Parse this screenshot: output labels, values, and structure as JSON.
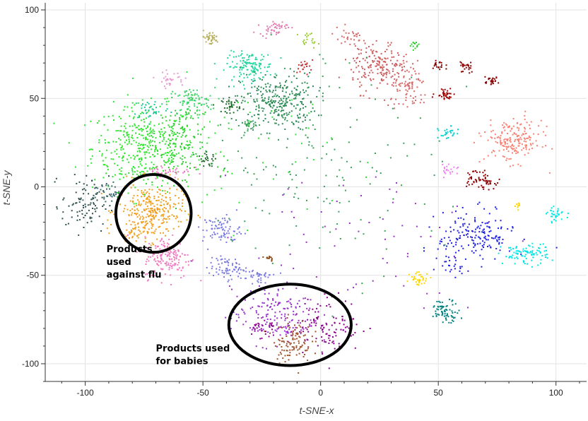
{
  "chart_data": {
    "type": "scatter",
    "xlabel": "t-SNE-x",
    "ylabel": "t-SNE-y",
    "xlim": [
      -117,
      113
    ],
    "ylim": [
      -110,
      104
    ],
    "xticks": [
      -100,
      -50,
      0,
      50,
      100
    ],
    "yticks": [
      -100,
      -50,
      0,
      50,
      100
    ],
    "xtick_labels": [
      "-100",
      "-50",
      "0",
      "50",
      "100"
    ],
    "ytick_labels": [
      "-100",
      "-50",
      "0",
      "50",
      "100"
    ],
    "grid": true,
    "annotations": [
      {
        "lines": [
          "Products",
          "used",
          "against flu"
        ],
        "x": -91,
        "y": -37
      },
      {
        "lines": [
          "Products used",
          "for babies"
        ],
        "x": -70,
        "y": -93
      }
    ],
    "highlight_ellipses": [
      {
        "name": "flu-cluster",
        "cx": -71,
        "cy": -15,
        "rx": 16,
        "ry": 22
      },
      {
        "name": "babies-cluster",
        "cx": -13,
        "cy": -78,
        "rx": 26,
        "ry": 23
      }
    ],
    "clusters": [
      {
        "color": "#2ee62e",
        "cx": -75,
        "cy": 22,
        "sx": 11,
        "sy": 12,
        "n": 420
      },
      {
        "color": "#33cc33",
        "cx": -58,
        "cy": 28,
        "sx": 6,
        "sy": 10,
        "n": 120
      },
      {
        "color": "#3fd36a",
        "cx": -55,
        "cy": 48,
        "sx": 5,
        "sy": 4,
        "n": 80
      },
      {
        "color": "#21c996",
        "cx": -72,
        "cy": 44,
        "sx": 4,
        "sy": 3,
        "n": 40
      },
      {
        "color": "#2e8b57",
        "cx": -18,
        "cy": 48,
        "sx": 8,
        "sy": 8,
        "n": 280
      },
      {
        "color": "#24d6a0",
        "cx": -30,
        "cy": 68,
        "sx": 5,
        "sy": 4,
        "n": 130
      },
      {
        "color": "#1f6b2a",
        "cx": -38,
        "cy": 46,
        "sx": 2,
        "sy": 2,
        "n": 35
      },
      {
        "color": "#1f6b2a",
        "cx": -48,
        "cy": 15,
        "sx": 2,
        "sy": 2,
        "n": 25
      },
      {
        "color": "#3a9f5b",
        "cx": -30,
        "cy": 35,
        "sx": 2,
        "sy": 2,
        "n": 25
      },
      {
        "color": "#2ee62e",
        "cx": -35,
        "cy": 20,
        "sx": 20,
        "sy": 20,
        "n": 60
      },
      {
        "color": "#f0a020",
        "cx": -72,
        "cy": -14,
        "sx": 7,
        "sy": 8,
        "n": 300
      },
      {
        "color": "#f0a020",
        "cx": -80,
        "cy": -27,
        "sx": 2,
        "sy": 2,
        "n": 25
      },
      {
        "color": "#2f4f4f",
        "cx": -100,
        "cy": -10,
        "sx": 5,
        "sy": 8,
        "n": 90
      },
      {
        "color": "#3b6b6b",
        "cx": -91,
        "cy": -3,
        "sx": 3,
        "sy": 3,
        "n": 40
      },
      {
        "color": "#f07ac0",
        "cx": -65,
        "cy": -40,
        "sx": 5,
        "sy": 6,
        "n": 160
      },
      {
        "color": "#f07ac0",
        "cx": -65,
        "cy": 9,
        "sx": 5,
        "sy": 2,
        "n": 40
      },
      {
        "color": "#e89ad2",
        "cx": -64,
        "cy": 61,
        "sx": 3,
        "sy": 2,
        "n": 30
      },
      {
        "color": "#b8b060",
        "cx": -47,
        "cy": 84,
        "sx": 2,
        "sy": 2,
        "n": 40
      },
      {
        "color": "#e07ab0",
        "cx": -20,
        "cy": 90,
        "sx": 3,
        "sy": 2,
        "n": 45
      },
      {
        "color": "#9acd32",
        "cx": -5,
        "cy": 83,
        "sx": 2,
        "sy": 2,
        "n": 20
      },
      {
        "color": "#7b7be0",
        "cx": -42,
        "cy": -24,
        "sx": 4,
        "sy": 4,
        "n": 80
      },
      {
        "color": "#7b7be0",
        "cx": -40,
        "cy": -46,
        "sx": 4,
        "sy": 3,
        "n": 70
      },
      {
        "color": "#7b7be0",
        "cx": -27,
        "cy": -51,
        "sx": 4,
        "sy": 3,
        "n": 40
      },
      {
        "color": "#9932cc",
        "cx": -20,
        "cy": -73,
        "sx": 9,
        "sy": 8,
        "n": 170
      },
      {
        "color": "#8b008b",
        "cx": 3,
        "cy": -78,
        "sx": 7,
        "sy": 8,
        "n": 110
      },
      {
        "color": "#a0522d",
        "cx": -12,
        "cy": -87,
        "sx": 4,
        "sy": 6,
        "n": 110
      },
      {
        "color": "#8b008b",
        "cx": -25,
        "cy": -80,
        "sx": 3,
        "sy": 3,
        "n": 30
      },
      {
        "color": "#cd5c5c",
        "cx": 25,
        "cy": 68,
        "sx": 6,
        "sy": 7,
        "n": 180
      },
      {
        "color": "#d46a6a",
        "cx": 38,
        "cy": 55,
        "sx": 4,
        "sy": 6,
        "n": 80
      },
      {
        "color": "#d46a6a",
        "cx": 12,
        "cy": 84,
        "sx": 4,
        "sy": 3,
        "n": 30
      },
      {
        "color": "#800000",
        "cx": 50,
        "cy": 68,
        "sx": 1.5,
        "sy": 2,
        "n": 20
      },
      {
        "color": "#8b0000",
        "cx": 62,
        "cy": 68,
        "sx": 1.5,
        "sy": 2,
        "n": 25
      },
      {
        "color": "#8b0000",
        "cx": 72,
        "cy": 60,
        "sx": 2,
        "sy": 1,
        "n": 25
      },
      {
        "color": "#990000",
        "cx": 53,
        "cy": 53,
        "sx": 2,
        "sy": 2,
        "n": 35
      },
      {
        "color": "#8b0000",
        "cx": 70,
        "cy": 3,
        "sx": 2,
        "sy": 2,
        "n": 35
      },
      {
        "color": "#8b0000",
        "cx": 65,
        "cy": 5,
        "sx": 2,
        "sy": 2,
        "n": 25
      },
      {
        "color": "#fa8072",
        "cx": 82,
        "cy": 26,
        "sx": 6,
        "sy": 6,
        "n": 190
      },
      {
        "color": "#1f1fe0",
        "cx": 66,
        "cy": -28,
        "sx": 8,
        "sy": 7,
        "n": 170
      },
      {
        "color": "#1f1fe0",
        "cx": 56,
        "cy": -44,
        "sx": 3,
        "sy": 3,
        "n": 25
      },
      {
        "color": "#00e5e5",
        "cx": 87,
        "cy": -38,
        "sx": 5,
        "sy": 3,
        "n": 90
      },
      {
        "color": "#00e5e5",
        "cx": 100,
        "cy": -16,
        "sx": 2,
        "sy": 2,
        "n": 30
      },
      {
        "color": "#00ced1",
        "cx": 54,
        "cy": 30,
        "sx": 2,
        "sy": 2,
        "n": 25
      },
      {
        "color": "#008080",
        "cx": 53,
        "cy": -70,
        "sx": 3,
        "sy": 3,
        "n": 70
      },
      {
        "color": "#ffd700",
        "cx": 42,
        "cy": -52,
        "sx": 2,
        "sy": 2,
        "n": 35
      },
      {
        "color": "#ffd700",
        "cx": 84,
        "cy": -11,
        "sx": 1,
        "sy": 1,
        "n": 10
      },
      {
        "color": "#ee82ee",
        "cx": 55,
        "cy": 10,
        "sx": 2,
        "sy": 2,
        "n": 20
      },
      {
        "color": "#cc3333",
        "cx": -7,
        "cy": 68,
        "sx": 2,
        "sy": 2,
        "n": 20
      },
      {
        "color": "#32cd32",
        "cx": 40,
        "cy": 80,
        "sx": 1,
        "sy": 1,
        "n": 12
      },
      {
        "color": "#3a9f5b",
        "cx": 0,
        "cy": 15,
        "sx": 25,
        "sy": 30,
        "n": 160
      },
      {
        "color": "#8b4513",
        "cx": -22,
        "cy": -40,
        "sx": 1,
        "sy": 1,
        "n": 12
      },
      {
        "color": "#9932cc",
        "cx": 15,
        "cy": -25,
        "sx": 30,
        "sy": 20,
        "n": 60
      }
    ]
  }
}
